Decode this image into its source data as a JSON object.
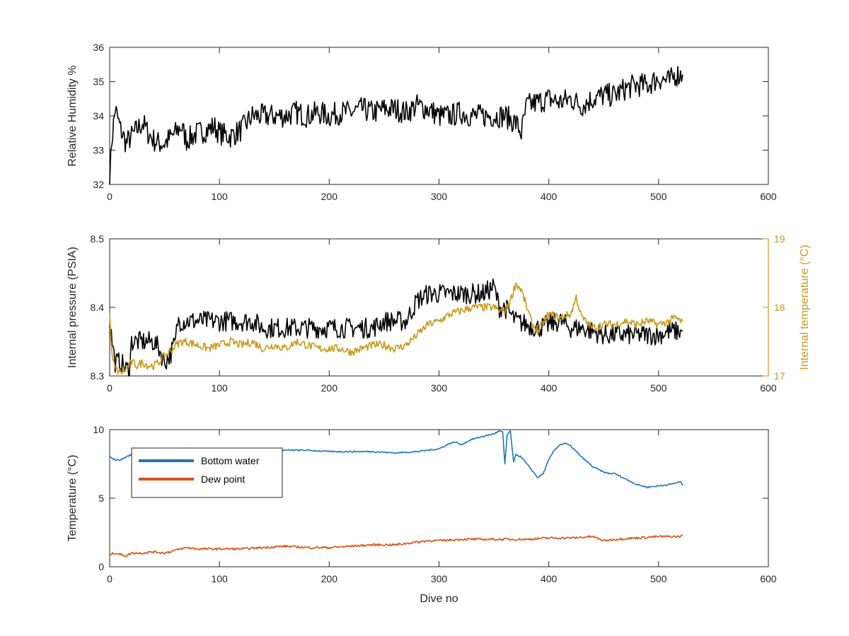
{
  "chart_data": [
    {
      "type": "line",
      "ylabel": "Relative Humidity %",
      "xlim": [
        0,
        600
      ],
      "ylim": [
        32,
        36
      ],
      "xticks": [
        0,
        100,
        200,
        300,
        400,
        500,
        600
      ],
      "yticks": [
        32,
        33,
        34,
        35,
        36
      ],
      "series": [
        {
          "color": "#000000",
          "x": [
            0,
            2,
            5,
            10,
            15,
            20,
            30,
            35,
            40,
            45,
            50,
            60,
            65,
            70,
            80,
            90,
            95,
            100,
            110,
            120,
            130,
            140,
            150,
            160,
            170,
            180,
            190,
            200,
            210,
            220,
            230,
            240,
            250,
            260,
            270,
            280,
            290,
            300,
            310,
            320,
            330,
            340,
            350,
            360,
            365,
            370,
            375,
            380,
            390,
            400,
            410,
            420,
            430,
            440,
            450,
            460,
            470,
            480,
            490,
            500,
            510,
            515,
            520,
            522
          ],
          "y": [
            32.1,
            33.3,
            34.2,
            33.6,
            33.2,
            33.4,
            33.8,
            33.5,
            33.3,
            33.2,
            33.2,
            33.5,
            33.7,
            33.3,
            33.5,
            33.6,
            33.7,
            33.5,
            33.4,
            33.6,
            34.0,
            34.0,
            34.0,
            34.0,
            34.1,
            34.0,
            34.1,
            34.0,
            34.1,
            34.1,
            34.2,
            34.1,
            34.2,
            34.2,
            34.1,
            34.3,
            34.2,
            34.0,
            34.0,
            34.1,
            34.0,
            34.0,
            34.0,
            34.0,
            33.9,
            33.8,
            33.5,
            34.3,
            34.4,
            34.5,
            34.4,
            34.5,
            34.3,
            34.5,
            34.6,
            34.6,
            34.8,
            34.9,
            34.9,
            35.1,
            35.0,
            35.2,
            35.2,
            35.2
          ]
        }
      ]
    },
    {
      "type": "line",
      "ylabel": "Internal pressure (PSIA)",
      "ylabel_right": "Internal temperature (°C)",
      "xlim": [
        0,
        600
      ],
      "ylim": [
        8.3,
        8.5
      ],
      "ylim_right": [
        17,
        19
      ],
      "xticks": [
        0,
        100,
        200,
        300,
        400,
        500,
        600
      ],
      "yticks": [
        8.3,
        8.4,
        8.5
      ],
      "yticks_right": [
        17,
        18,
        19
      ],
      "series": [
        {
          "axis": "left",
          "color": "#000000",
          "x": [
            0,
            3,
            5,
            10,
            15,
            18,
            20,
            25,
            30,
            35,
            40,
            45,
            50,
            55,
            60,
            62,
            70,
            80,
            90,
            100,
            110,
            120,
            130,
            140,
            150,
            160,
            170,
            180,
            190,
            200,
            210,
            220,
            230,
            240,
            250,
            260,
            270,
            280,
            290,
            300,
            310,
            320,
            330,
            340,
            350,
            355,
            360,
            370,
            380,
            390,
            400,
            410,
            420,
            430,
            440,
            450,
            460,
            470,
            480,
            490,
            500,
            510,
            520,
            522
          ],
          "y": [
            8.38,
            8.34,
            8.32,
            8.32,
            8.31,
            8.31,
            8.35,
            8.35,
            8.35,
            8.35,
            8.35,
            8.34,
            8.32,
            8.33,
            8.35,
            8.38,
            8.38,
            8.38,
            8.38,
            8.38,
            8.38,
            8.38,
            8.38,
            8.37,
            8.37,
            8.37,
            8.37,
            8.37,
            8.37,
            8.37,
            8.37,
            8.37,
            8.37,
            8.37,
            8.38,
            8.38,
            8.38,
            8.41,
            8.42,
            8.42,
            8.42,
            8.42,
            8.42,
            8.42,
            8.43,
            8.4,
            8.4,
            8.38,
            8.375,
            8.37,
            8.375,
            8.38,
            8.37,
            8.37,
            8.365,
            8.36,
            8.36,
            8.36,
            8.36,
            8.36,
            8.36,
            8.365,
            8.365,
            8.365
          ]
        },
        {
          "axis": "right",
          "color": "#c8981a",
          "x": [
            0,
            2,
            5,
            10,
            15,
            20,
            25,
            30,
            35,
            40,
            45,
            50,
            55,
            60,
            65,
            70,
            80,
            90,
            100,
            110,
            120,
            130,
            140,
            150,
            160,
            170,
            180,
            190,
            200,
            210,
            220,
            230,
            240,
            250,
            260,
            270,
            280,
            290,
            300,
            310,
            320,
            330,
            340,
            350,
            355,
            360,
            365,
            370,
            375,
            380,
            385,
            390,
            400,
            410,
            420,
            425,
            430,
            440,
            450,
            460,
            470,
            480,
            490,
            500,
            510,
            515,
            520,
            522
          ],
          "y": [
            17.9,
            17.3,
            17.1,
            17.05,
            17.1,
            17.2,
            17.15,
            17.2,
            17.15,
            17.15,
            17.2,
            17.3,
            17.35,
            17.45,
            17.5,
            17.5,
            17.45,
            17.4,
            17.45,
            17.5,
            17.45,
            17.5,
            17.4,
            17.45,
            17.4,
            17.5,
            17.45,
            17.4,
            17.4,
            17.4,
            17.35,
            17.4,
            17.45,
            17.45,
            17.4,
            17.45,
            17.6,
            17.75,
            17.8,
            17.9,
            17.95,
            18.0,
            18.0,
            18.0,
            17.95,
            17.95,
            18.1,
            18.35,
            18.25,
            18.0,
            17.75,
            17.65,
            17.9,
            17.85,
            17.9,
            18.15,
            17.85,
            17.7,
            17.75,
            17.75,
            17.8,
            17.75,
            17.8,
            17.75,
            17.8,
            17.85,
            17.8,
            17.8
          ]
        }
      ]
    },
    {
      "type": "line",
      "ylabel": "Temperature (°C)",
      "xlabel": "Dive no",
      "xlim": [
        0,
        600
      ],
      "ylim": [
        0,
        10
      ],
      "xticks": [
        0,
        100,
        200,
        300,
        400,
        500,
        600
      ],
      "yticks": [
        0,
        5,
        10
      ],
      "legend": {
        "placement": "top-left"
      },
      "series": [
        {
          "name": "Bottom water",
          "color": "#1f77b4",
          "x": [
            0,
            5,
            10,
            20,
            30,
            40,
            50,
            60,
            70,
            80,
            90,
            100,
            120,
            140,
            160,
            180,
            200,
            220,
            240,
            260,
            280,
            300,
            310,
            315,
            320,
            330,
            340,
            350,
            355,
            358,
            360,
            362,
            365,
            368,
            370,
            375,
            380,
            385,
            390,
            395,
            400,
            405,
            410,
            415,
            420,
            430,
            440,
            450,
            455,
            460,
            470,
            480,
            490,
            500,
            510,
            520,
            522
          ],
          "y": [
            8.0,
            7.8,
            7.8,
            8.2,
            8.4,
            8.6,
            8.5,
            8.6,
            8.6,
            8.6,
            8.6,
            8.5,
            8.5,
            8.5,
            8.5,
            8.5,
            8.4,
            8.4,
            8.4,
            8.3,
            8.4,
            8.6,
            9.0,
            9.1,
            8.9,
            9.3,
            9.5,
            9.7,
            9.9,
            9.8,
            7.5,
            9.6,
            9.9,
            7.6,
            8.2,
            8.0,
            7.5,
            7.0,
            6.5,
            6.8,
            7.8,
            8.5,
            8.9,
            9.0,
            8.8,
            8.0,
            7.3,
            6.9,
            6.8,
            6.8,
            6.4,
            6.0,
            5.8,
            5.9,
            6.0,
            6.2,
            5.9
          ]
        },
        {
          "name": "Dew point",
          "color": "#d95319",
          "x": [
            0,
            5,
            10,
            15,
            20,
            30,
            40,
            50,
            60,
            70,
            80,
            90,
            100,
            120,
            140,
            160,
            180,
            200,
            220,
            240,
            260,
            280,
            290,
            300,
            320,
            340,
            360,
            380,
            400,
            420,
            440,
            450,
            460,
            480,
            500,
            520,
            522
          ],
          "y": [
            0.9,
            1.0,
            0.9,
            0.8,
            1.0,
            1.0,
            1.1,
            1.0,
            1.2,
            1.4,
            1.3,
            1.3,
            1.3,
            1.3,
            1.4,
            1.5,
            1.4,
            1.4,
            1.5,
            1.6,
            1.6,
            1.8,
            1.9,
            1.9,
            2.0,
            2.0,
            2.0,
            2.0,
            2.1,
            2.1,
            2.2,
            1.9,
            2.0,
            2.1,
            2.2,
            2.2,
            2.3
          ]
        }
      ]
    }
  ]
}
